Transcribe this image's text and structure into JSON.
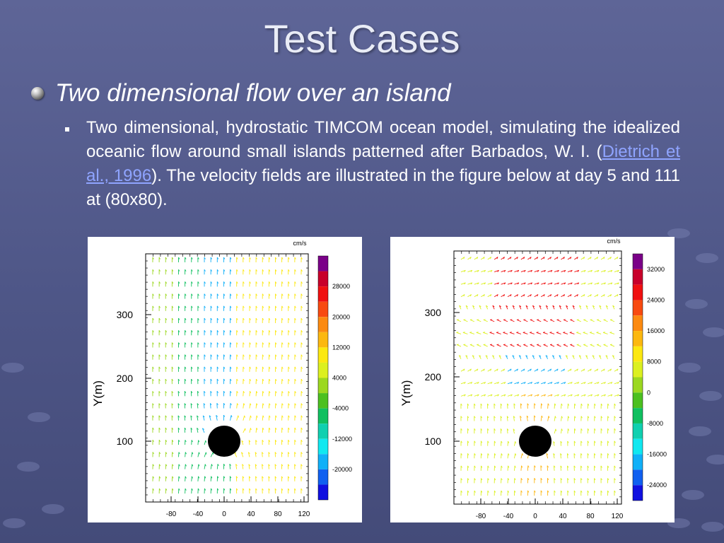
{
  "slide": {
    "title": "Test Cases",
    "bullet1": "Two dimensional flow over an island",
    "bullet2": {
      "text_before": "Two dimensional, hydrostatic TIMCOM ocean model, simulating the idealized oceanic flow around small islands patterned after Barbados, W. I. (",
      "link": "Dietrich et al., 1996",
      "text_after": "). The velocity fields are illustrated in the figure below at day 5 and 111 at (80x80)."
    }
  },
  "figures": [
    {
      "units_label": "cm/s",
      "ylabel": "Y(m)",
      "x_ticks": [
        "-80",
        "-40",
        "0",
        "40",
        "80",
        "120"
      ],
      "y_ticks": [
        "300",
        "200",
        "100"
      ],
      "colorbar_labels": [
        "28000",
        "20000",
        "12000",
        "4000",
        "-4000",
        "-12000",
        "-20000"
      ]
    },
    {
      "units_label": "cm/s",
      "ylabel": "Y(m)",
      "x_ticks": [
        "-80",
        "-40",
        "0",
        "40",
        "80",
        "120"
      ],
      "y_ticks": [
        "300",
        "200",
        "100"
      ],
      "colorbar_labels": [
        "32000",
        "24000",
        "16000",
        "8000",
        "0",
        "-8000",
        "-16000",
        "-24000"
      ]
    }
  ],
  "colors": {
    "colorbar": [
      "#7a0088",
      "#c8002a",
      "#f01010",
      "#f84a10",
      "#fc8a10",
      "#fcb810",
      "#fce810",
      "#dcf020",
      "#9cd820",
      "#4cc020",
      "#10c060",
      "#10d0b0",
      "#10e8f0",
      "#10b0f8",
      "#1060f0",
      "#1010e0"
    ],
    "link": "#8fa4ff"
  }
}
